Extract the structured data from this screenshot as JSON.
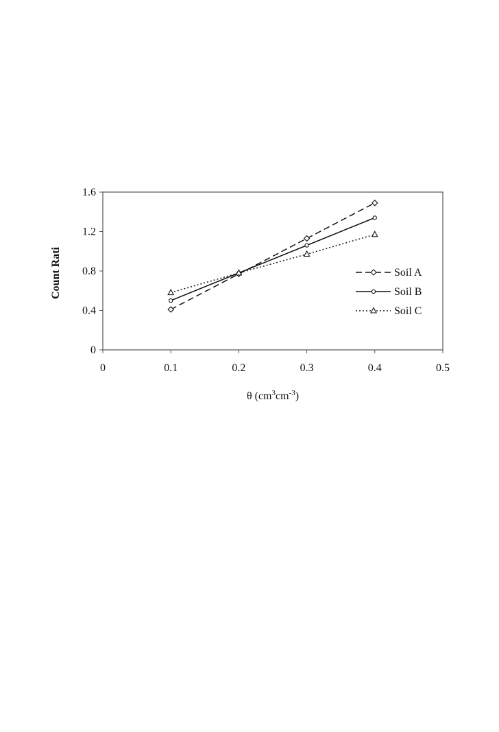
{
  "chart_data": {
    "type": "line",
    "title": "",
    "xlabel": "θ (cm³cm⁻³)",
    "xlabel_parts": {
      "base": "θ (cm",
      "sup1": "3",
      "mid": "cm",
      "sup2": "-3",
      "end": ")"
    },
    "ylabel": "Count Rati",
    "xlim": [
      0,
      0.5
    ],
    "ylim": [
      0,
      1.6
    ],
    "xticks": [
      0,
      0.1,
      0.2,
      0.3,
      0.4,
      0.5
    ],
    "xtick_labels": [
      "0",
      "0.1",
      "0.2",
      "0.3",
      "0.4",
      "0.5"
    ],
    "yticks": [
      0,
      0.4,
      0.8,
      1.2,
      1.6
    ],
    "ytick_labels": [
      "0",
      "0.4",
      "0.8",
      "1.2",
      "1.6"
    ],
    "grid": false,
    "legend_position": "right",
    "series": [
      {
        "name": "Soil A",
        "line": "dashed",
        "marker": "diamond",
        "x": [
          0.1,
          0.2,
          0.3,
          0.4
        ],
        "y": [
          0.41,
          0.77,
          1.13,
          1.49
        ]
      },
      {
        "name": "Soil B",
        "line": "solid",
        "marker": "circle",
        "x": [
          0.1,
          0.2,
          0.3,
          0.4
        ],
        "y": [
          0.5,
          0.78,
          1.06,
          1.34
        ]
      },
      {
        "name": "Soil C",
        "line": "dotted",
        "marker": "triangle",
        "x": [
          0.1,
          0.2,
          0.3,
          0.4
        ],
        "y": [
          0.58,
          0.78,
          0.97,
          1.17
        ]
      }
    ]
  }
}
